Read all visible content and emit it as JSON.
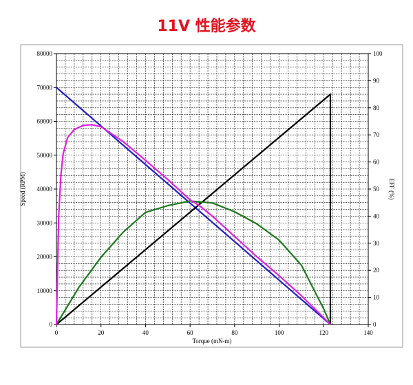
{
  "chart_data": {
    "type": "line",
    "title": "11V 性能参数",
    "x_label": "Torque (mN-m)",
    "y_label": "Speed (RPM)",
    "y2_label": "EFF (%)",
    "xlim": [
      0,
      140
    ],
    "xticks": [
      0,
      20,
      40,
      60,
      80,
      100,
      120,
      140
    ],
    "ylim": [
      0,
      80000
    ],
    "yticks": [
      0,
      10000,
      20000,
      30000,
      40000,
      50000,
      60000,
      70000,
      80000
    ],
    "y2lim": [
      0,
      100
    ],
    "y2ticks": [
      0,
      10,
      20,
      30,
      40,
      50,
      60,
      70,
      80,
      90,
      100
    ],
    "grid": true,
    "series": [
      {
        "color": "#2020c8",
        "x": [
          0,
          20,
          40,
          60,
          80,
          100,
          120,
          123
        ],
        "values": [
          70000,
          58618,
          47236,
          35854,
          24472,
          13089,
          1707,
          0
        ]
      },
      {
        "color": "#000000",
        "axis": "y2",
        "x": [
          0,
          123,
          123
        ],
        "values": [
          0,
          85,
          0
        ]
      },
      {
        "color": "#1e7a1e",
        "x": [
          0,
          10,
          20,
          30,
          40,
          50,
          60,
          70,
          80,
          90,
          100,
          110,
          120,
          123
        ],
        "values": [
          0,
          10900,
          19880,
          27300,
          33100,
          35100,
          36480,
          35900,
          33300,
          29700,
          24900,
          17500,
          4600,
          0
        ]
      },
      {
        "color": "#e020e0",
        "axis": "y2",
        "x": [
          0,
          1,
          2,
          3,
          5,
          8,
          12,
          16,
          20,
          30,
          40,
          50,
          60,
          64,
          70,
          80,
          90,
          100,
          110,
          120,
          123
        ],
        "values": [
          0,
          40,
          55,
          63,
          69,
          72,
          73.5,
          73.75,
          73,
          67.5,
          60.6,
          53.5,
          46,
          44,
          40,
          32.5,
          25,
          18,
          10.6,
          2.5,
          0
        ]
      }
    ]
  }
}
